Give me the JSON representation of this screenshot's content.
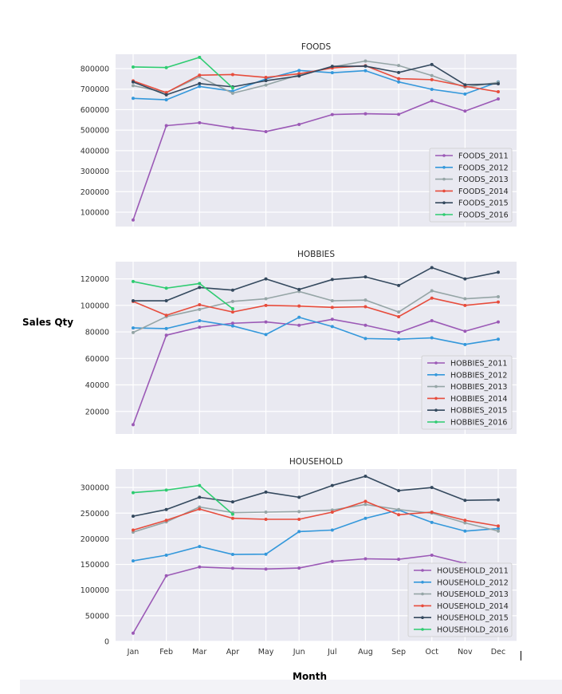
{
  "figure": {
    "ylabel": "Sales Qty",
    "xlabel": "Month"
  },
  "chart_data": [
    {
      "type": "line",
      "title": "FOODS",
      "categories": [
        "Jan",
        "Feb",
        "Mar",
        "Apr",
        "May",
        "Jun",
        "Jul",
        "Aug",
        "Sep",
        "Oct",
        "Nov",
        "Dec"
      ],
      "ylim": [
        30000,
        870000
      ],
      "yticks": [
        100000,
        200000,
        300000,
        400000,
        500000,
        600000,
        700000,
        800000
      ],
      "show_xticklabels": false,
      "grid": true,
      "legend": "lower-right",
      "series": [
        {
          "name": "FOODS_2011",
          "color": "#9b59b6",
          "values": [
            62000,
            522000,
            536000,
            511000,
            493000,
            528000,
            576000,
            580000,
            577000,
            643000,
            593000,
            652000
          ]
        },
        {
          "name": "FOODS_2012",
          "color": "#3498db",
          "values": [
            655000,
            648000,
            713000,
            690000,
            750000,
            791000,
            780000,
            790000,
            735000,
            699000,
            676000,
            735000
          ]
        },
        {
          "name": "FOODS_2013",
          "color": "#95a5a6",
          "values": [
            717000,
            683000,
            760000,
            680000,
            720000,
            770000,
            808000,
            837000,
            815000,
            766000,
            709000,
            733000
          ]
        },
        {
          "name": "FOODS_2014",
          "color": "#e74c3c",
          "values": [
            740000,
            683000,
            768000,
            771000,
            757000,
            775000,
            803000,
            814000,
            751000,
            746000,
            714000,
            687000
          ]
        },
        {
          "name": "FOODS_2015",
          "color": "#34495e",
          "values": [
            735000,
            672000,
            727000,
            711000,
            741000,
            764000,
            811000,
            812000,
            781000,
            820000,
            721000,
            726000
          ]
        },
        {
          "name": "FOODS_2016",
          "color": "#2ecc71",
          "values": [
            808000,
            805000,
            855000,
            706000,
            null,
            null,
            null,
            null,
            null,
            null,
            null,
            null
          ]
        }
      ]
    },
    {
      "type": "line",
      "title": "HOBBIES",
      "categories": [
        "Jan",
        "Feb",
        "Mar",
        "Apr",
        "May",
        "Jun",
        "Jul",
        "Aug",
        "Sep",
        "Oct",
        "Nov",
        "Dec"
      ],
      "ylim": [
        3000,
        133000
      ],
      "yticks": [
        20000,
        40000,
        60000,
        80000,
        100000,
        120000
      ],
      "show_xticklabels": false,
      "grid": true,
      "legend": "lower-right",
      "series": [
        {
          "name": "HOBBIES_2011",
          "color": "#9b59b6",
          "values": [
            10000,
            77500,
            83500,
            86500,
            87500,
            85000,
            89500,
            85000,
            79500,
            88500,
            80500,
            87500
          ]
        },
        {
          "name": "HOBBIES_2012",
          "color": "#3498db",
          "values": [
            83000,
            82500,
            88500,
            84500,
            78000,
            91000,
            84000,
            75000,
            74500,
            75500,
            70500,
            74500
          ]
        },
        {
          "name": "HOBBIES_2013",
          "color": "#95a5a6",
          "values": [
            79500,
            91500,
            97000,
            103000,
            105000,
            110500,
            103500,
            104000,
            95000,
            111000,
            105000,
            106500
          ]
        },
        {
          "name": "HOBBIES_2014",
          "color": "#e74c3c",
          "values": [
            103000,
            92500,
            100500,
            95000,
            100000,
            99500,
            98500,
            99000,
            91500,
            105500,
            100000,
            102500
          ]
        },
        {
          "name": "HOBBIES_2015",
          "color": "#34495e",
          "values": [
            103500,
            103500,
            113500,
            111500,
            120000,
            112000,
            119500,
            121500,
            115000,
            128500,
            120000,
            125000
          ]
        },
        {
          "name": "HOBBIES_2016",
          "color": "#2ecc71",
          "values": [
            118000,
            113000,
            116500,
            97500,
            null,
            null,
            null,
            null,
            null,
            null,
            null,
            null
          ]
        }
      ]
    },
    {
      "type": "line",
      "title": "HOUSEHOLD",
      "categories": [
        "Jan",
        "Feb",
        "Mar",
        "Apr",
        "May",
        "Jun",
        "Jul",
        "Aug",
        "Sep",
        "Oct",
        "Nov",
        "Dec"
      ],
      "ylim": [
        0,
        336000
      ],
      "yticks": [
        0,
        50000,
        100000,
        150000,
        200000,
        250000,
        300000
      ],
      "show_xticklabels": true,
      "grid": true,
      "legend": "lower-right",
      "series": [
        {
          "name": "HOUSEHOLD_2011",
          "color": "#9b59b6",
          "values": [
            16000,
            128000,
            145000,
            142500,
            141000,
            143000,
            156000,
            161000,
            160000,
            168000,
            152000,
            150000
          ]
        },
        {
          "name": "HOUSEHOLD_2012",
          "color": "#3498db",
          "values": [
            157000,
            168000,
            185000,
            169500,
            170000,
            214000,
            217000,
            240000,
            256000,
            232000,
            215000,
            220000
          ]
        },
        {
          "name": "HOUSEHOLD_2013",
          "color": "#95a5a6",
          "values": [
            213000,
            233000,
            262000,
            251000,
            252000,
            253000,
            256000,
            267000,
            257000,
            250000,
            231000,
            215000
          ]
        },
        {
          "name": "HOUSEHOLD_2014",
          "color": "#e74c3c",
          "values": [
            217000,
            236000,
            258000,
            240000,
            238000,
            238000,
            252000,
            273000,
            247000,
            252000,
            236000,
            225000
          ]
        },
        {
          "name": "HOUSEHOLD_2015",
          "color": "#34495e",
          "values": [
            244000,
            257000,
            281000,
            272000,
            291000,
            281000,
            304000,
            322000,
            294000,
            300000,
            275000,
            276000
          ]
        },
        {
          "name": "HOUSEHOLD_2016",
          "color": "#2ecc71",
          "values": [
            290000,
            295000,
            304000,
            248000,
            null,
            null,
            null,
            null,
            null,
            null,
            null,
            null
          ]
        }
      ]
    }
  ]
}
